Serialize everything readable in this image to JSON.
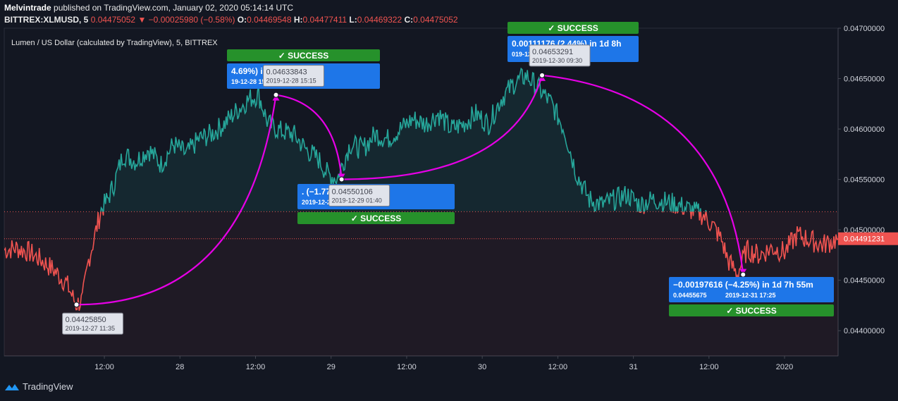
{
  "header": {
    "author": "Melvintrade",
    "published_text": "published on TradingView.com, January 02, 2020 05:14:14 UTC",
    "symbol": "BITTREX:XLMUSD, 5",
    "last": "0.04475052",
    "change": "−0.00025980 (−0.58%)",
    "o_label": "O:",
    "o_value": "0.04469548",
    "h_label": "H:",
    "h_value": "0.04477411",
    "l_label": "L:",
    "l_value": "0.04469322",
    "c_label": "C:",
    "c_value": "0.04475052"
  },
  "chart_title": "Lumen / US Dollar (calculated by TradingView), 5, BITTREX",
  "footer": {
    "brand": "TradingView"
  },
  "colors": {
    "up": "#26a69a",
    "down": "#ef5350",
    "magenta": "#e600e6",
    "success": "#26912b",
    "info": "#1e76e8",
    "background": "#131722"
  },
  "chart_data": {
    "type": "area",
    "symbol": "XLMUSD",
    "baseline": 0.04518,
    "current_price": "0.04491231",
    "ylim": [
      0.04375,
      0.047
    ],
    "y_ticks": [
      "0.04700000",
      "0.04650000",
      "0.04600000",
      "0.04550000",
      "0.04500000",
      "0.04450000",
      "0.04400000"
    ],
    "y_tick_values": [
      0.047,
      0.0465,
      0.046,
      0.0455,
      0.045,
      0.0445,
      0.044
    ],
    "x_ticks": [
      "12:00",
      "28",
      "12:00",
      "29",
      "12:00",
      "30",
      "12:00",
      "31",
      "12:00",
      "2020"
    ],
    "x_tick_times": [
      12,
      24,
      36,
      48,
      60,
      72,
      84,
      96,
      108,
      120
    ],
    "xlim": [
      -3.9,
      128.5
    ],
    "time_unit_note": "",
    "series": [
      {
        "points": [
          [
            -3.9,
            0.0448
          ],
          [
            -2,
            0.04482
          ],
          [
            0,
            0.04478
          ],
          [
            2,
            0.0447
          ],
          [
            4,
            0.0446
          ],
          [
            6,
            0.04447
          ],
          [
            7.5,
            0.04426
          ],
          [
            8.5,
            0.0443
          ],
          [
            9.5,
            0.0447
          ],
          [
            10.5,
            0.04495
          ],
          [
            11.5,
            0.0452
          ],
          [
            12.5,
            0.0453
          ],
          [
            13.5,
            0.04545
          ],
          [
            15,
            0.04575
          ],
          [
            17,
            0.04568
          ],
          [
            19,
            0.0458
          ],
          [
            21,
            0.04565
          ],
          [
            23,
            0.04585
          ],
          [
            25,
            0.04575
          ],
          [
            27,
            0.0459
          ],
          [
            29,
            0.04595
          ],
          [
            31,
            0.04605
          ],
          [
            33,
            0.04618
          ],
          [
            35,
            0.0463
          ],
          [
            36.5,
            0.04634
          ],
          [
            38,
            0.04605
          ],
          [
            40,
            0.04598
          ],
          [
            42,
            0.04595
          ],
          [
            44,
            0.0458
          ],
          [
            46,
            0.0457
          ],
          [
            47.5,
            0.04555
          ],
          [
            49,
            0.04551
          ],
          [
            51,
            0.04585
          ],
          [
            53,
            0.0458
          ],
          [
            55,
            0.04595
          ],
          [
            57,
            0.0459
          ],
          [
            59,
            0.046
          ],
          [
            61,
            0.0461
          ],
          [
            63,
            0.04605
          ],
          [
            65,
            0.04615
          ],
          [
            67,
            0.046
          ],
          [
            69,
            0.04605
          ],
          [
            71,
            0.04615
          ],
          [
            73,
            0.04605
          ],
          [
            75,
            0.0463
          ],
          [
            77,
            0.04645
          ],
          [
            79,
            0.04653
          ],
          [
            81,
            0.0464
          ],
          [
            83,
            0.04625
          ],
          [
            85,
            0.046
          ],
          [
            87,
            0.04555
          ],
          [
            89,
            0.0453
          ],
          [
            91,
            0.04525
          ],
          [
            93,
            0.0453
          ],
          [
            95,
            0.04535
          ],
          [
            97,
            0.04525
          ],
          [
            99,
            0.0453
          ],
          [
            101,
            0.04528
          ],
          [
            103,
            0.04525
          ],
          [
            105,
            0.0452
          ],
          [
            107,
            0.04515
          ],
          [
            108.5,
            0.04505
          ],
          [
            110,
            0.0449
          ],
          [
            111,
            0.0447
          ],
          [
            112.5,
            0.04456
          ],
          [
            114,
            0.0448
          ],
          [
            116,
            0.04475
          ],
          [
            118,
            0.04482
          ],
          [
            120,
            0.04478
          ],
          [
            122,
            0.04495
          ],
          [
            124,
            0.0449
          ],
          [
            126,
            0.04485
          ],
          [
            128.5,
            0.04491
          ]
        ]
      }
    ],
    "markers": [
      {
        "price": "0.04425850",
        "date": "2019-12-27 11:35",
        "t": 7.58,
        "v": 0.0442585
      },
      {
        "price": "0.04633843",
        "date": "2019-12-28 15:15",
        "t": 39.25,
        "v": 0.04633843
      },
      {
        "price": "0.04550106",
        "date": "2019-12-29 01:40",
        "t": 49.67,
        "v": 0.04550106
      },
      {
        "price": "0.04653291",
        "date": "2019-12-30 09:30",
        "t": 81.5,
        "v": 0.04653291
      },
      {
        "price": "0.04455675",
        "date": "2019-12-31 17:25",
        "t": 113.42,
        "v": 0.04455675
      }
    ],
    "measurements": [
      {
        "text": "4.69%) in 1d 3h 35m",
        "date": "19-12-28  15:10",
        "status": "✓ SUCCESS"
      },
      {
        "text": ". (−1.77%) in 10h 50m",
        "date": "2019-12-29  02:05",
        "status": "✓ SUCCESS"
      },
      {
        "text": "0.00111176 (2.44%) in 1d 8h",
        "date": "019-12-30  09:40",
        "status": "✓ SUCCESS"
      },
      {
        "text": "−0.00197616 (−4.25%) in 1d 7h 55m",
        "sub": "0.04455675",
        "date": "2019-12-31  17:25",
        "status": "✓ SUCCESS"
      }
    ]
  }
}
